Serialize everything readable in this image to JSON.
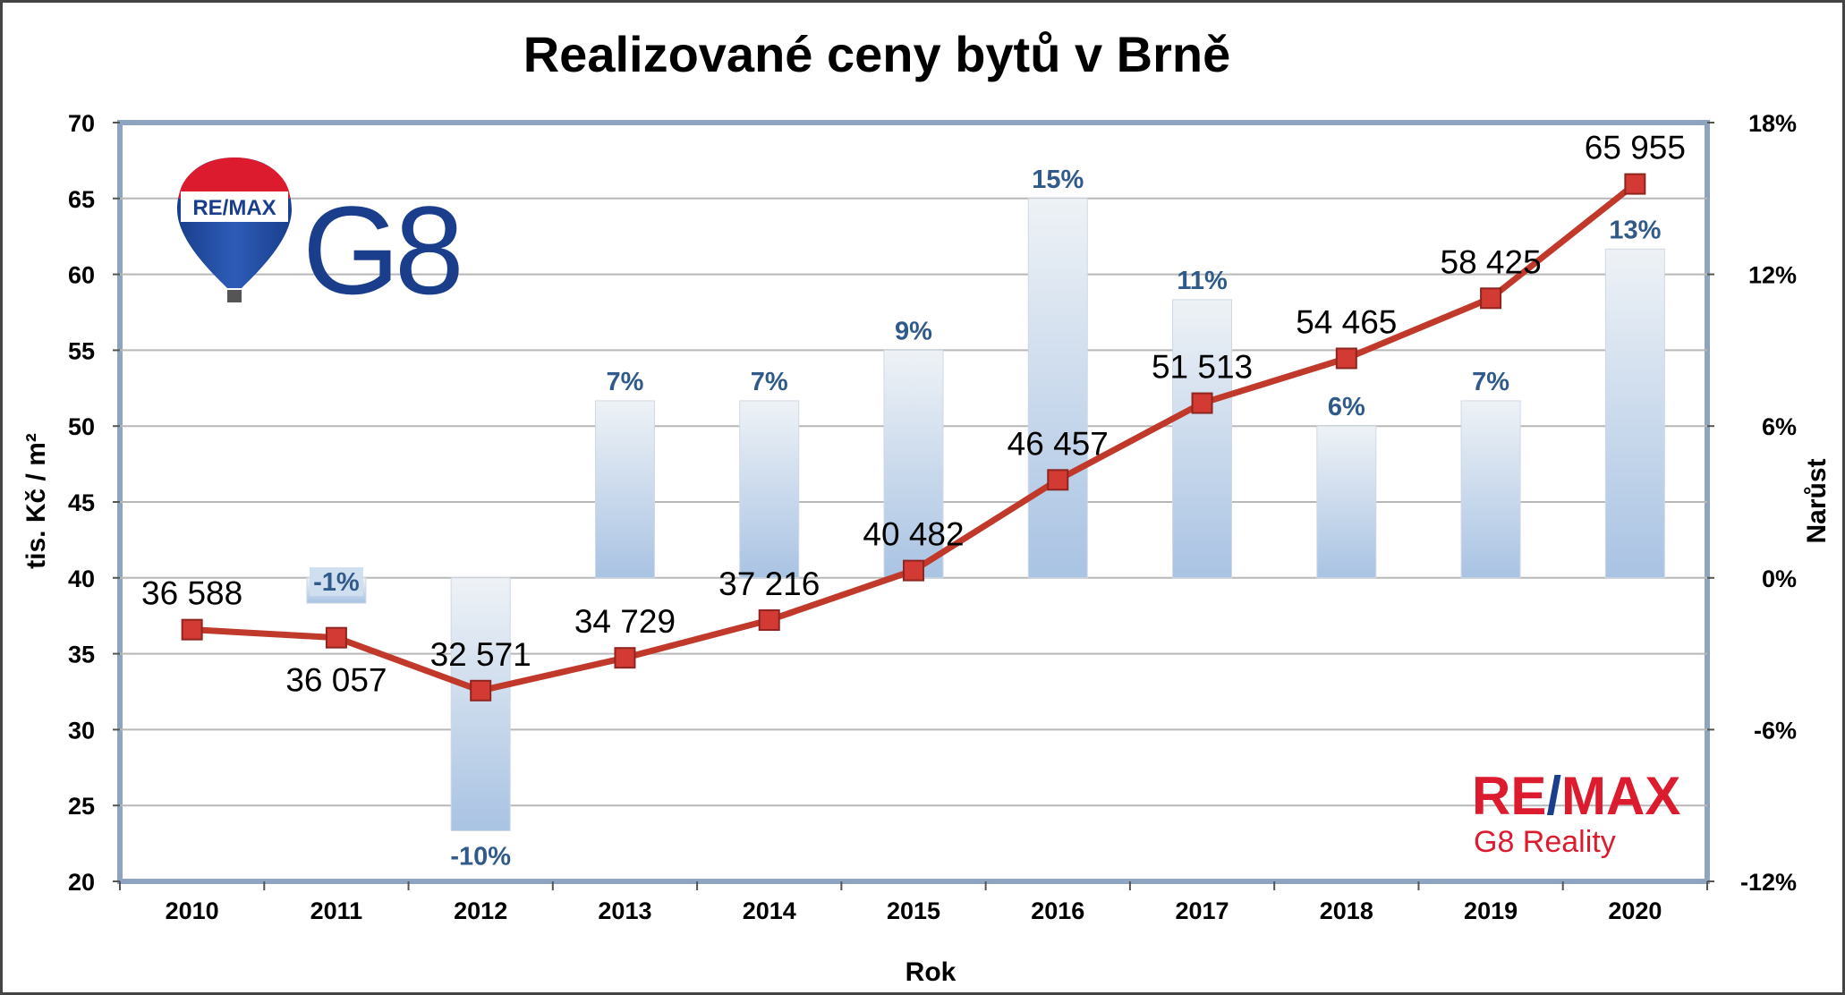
{
  "chart_data": {
    "type": "bar+line",
    "title": "Realizované ceny bytů v Brně",
    "xlabel": "Rok",
    "ylabel": "tis. Kč / m²",
    "y2label": "Narůst",
    "categories": [
      "2010",
      "2011",
      "2012",
      "2013",
      "2014",
      "2015",
      "2016",
      "2017",
      "2018",
      "2019",
      "2020"
    ],
    "ylim": [
      20,
      70
    ],
    "yticks": [
      "20",
      "25",
      "30",
      "35",
      "40",
      "45",
      "50",
      "55",
      "60",
      "65",
      "70"
    ],
    "y2lim": [
      -12,
      18
    ],
    "y2ticks": [
      "-12%",
      "-6%",
      "0%",
      "6%",
      "12%",
      "18%"
    ],
    "grid": true,
    "series": [
      {
        "kind": "line",
        "axis": "left",
        "color": "#c0392b",
        "values": [
          36.588,
          36.057,
          32.571,
          34.729,
          37.216,
          40.482,
          46.457,
          51.513,
          54.465,
          58.425,
          65.955
        ],
        "labels": [
          "36 588",
          "36 057",
          "32 571",
          "34 729",
          "37 216",
          "40 482",
          "46 457",
          "51 513",
          "54 465",
          "58 425",
          "65 955"
        ]
      },
      {
        "kind": "bar",
        "axis": "right",
        "color": "#a9c3e3",
        "values": [
          null,
          -1,
          -10,
          7,
          7,
          9,
          15,
          11,
          6,
          7,
          13
        ],
        "labels": [
          "",
          "-1%",
          "-10%",
          "7%",
          "7%",
          "9%",
          "15%",
          "11%",
          "6%",
          "7%",
          "13%"
        ]
      }
    ]
  },
  "logos": {
    "balloon": {
      "text": "RE/MAX",
      "icon": "remax-balloon-icon",
      "colors": [
        "#dc1c2e",
        "#ffffff",
        "#1a3e8c"
      ]
    },
    "g8": {
      "text": "G8",
      "color": "#1a3e8c"
    },
    "brand": {
      "text_re": "RE",
      "text_slash": "/",
      "text_max": "MAX",
      "subtitle": "G8 Reality",
      "red": "#dc1c2e",
      "blue": "#1a3e8c"
    }
  }
}
